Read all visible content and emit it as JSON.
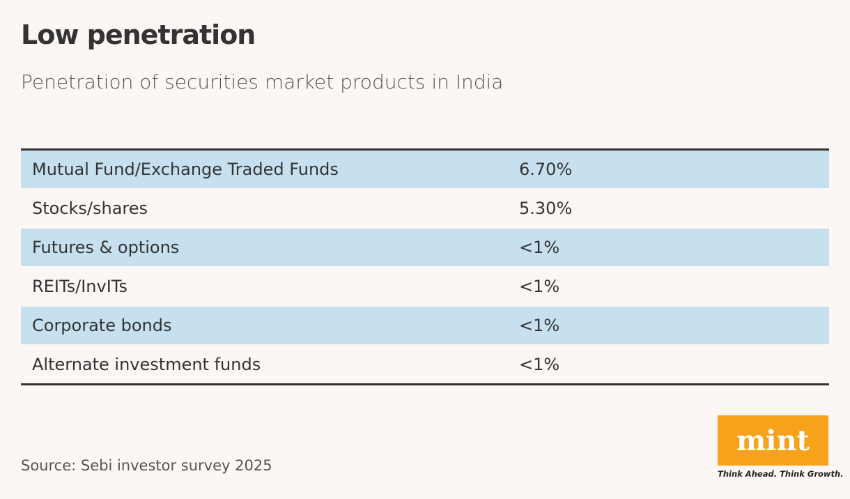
{
  "header": {
    "title": "Low penetration",
    "subtitle": "Penetration of securities market products in India"
  },
  "table": {
    "rows": [
      [
        "Mutual Fund/Exchange Traded Funds",
        "6.70%"
      ],
      [
        "Stocks/shares",
        "5.30%"
      ],
      [
        "Futures & options",
        "<1%"
      ],
      [
        "REITs/InvITs",
        "<1%"
      ],
      [
        "Corporate bonds",
        "<1%"
      ],
      [
        "Alternate investment funds",
        "<1%"
      ]
    ]
  },
  "footer": {
    "source": "Source: Sebi investor survey 2025",
    "logo": "mint",
    "tagline": "Think Ahead. Think Growth."
  }
}
